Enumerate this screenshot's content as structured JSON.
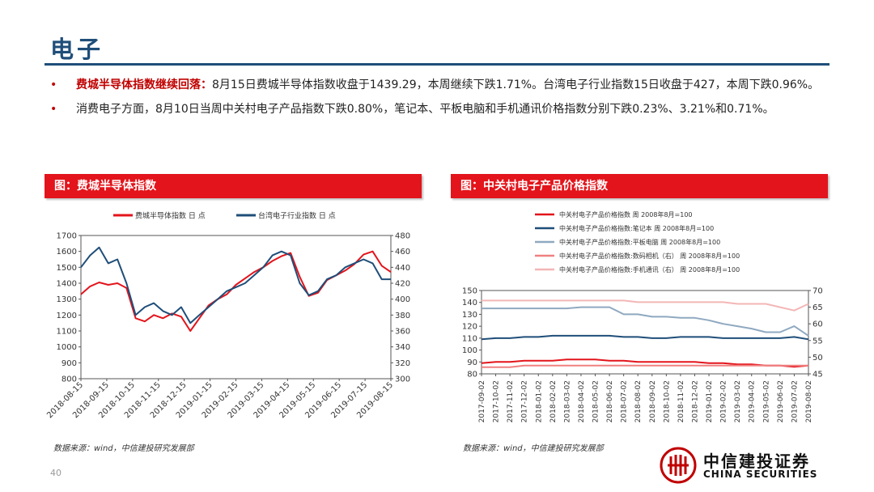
{
  "page": {
    "title": "电子",
    "page_number": "40",
    "bullets": [
      {
        "lead": "费城半导体指数继续回落：",
        "text": "8月15日费城半导体指数收盘于1439.29，本周继续下跌1.71%。台湾电子行业指数15日收盘于427，本周下跌0.96%。"
      },
      {
        "lead": "",
        "text": "消费电子方面，8月10日当周中关村电子产品指数下跌0.80%，笔记本、平板电脑和手机通讯价格指数分别下跌0.23%、3.21%和0.71%。"
      }
    ],
    "logo": {
      "cn": "中信建投证券",
      "en": "CHINA SECURITIES"
    },
    "colors": {
      "accent": "#e3141b",
      "brand": "#1f4e79"
    }
  },
  "chart_data": [
    {
      "type": "line",
      "panel_title": "图：费城半导体指数",
      "source": "数据来源：wind，中信建投研究发展部",
      "x_ticks": [
        "2018-08-15",
        "2018-09-15",
        "2018-10-15",
        "2018-11-15",
        "2018-12-15",
        "2019-01-15",
        "2019-02-15",
        "2019-03-15",
        "2019-04-15",
        "2019-05-15",
        "2019-06-15",
        "2019-07-15",
        "2019-08-15"
      ],
      "ylim": [
        800,
        1700
      ],
      "y_ticks": [
        800,
        900,
        1000,
        1100,
        1200,
        1300,
        1400,
        1500,
        1600,
        1700
      ],
      "y2lim": [
        300,
        480
      ],
      "y2_ticks": [
        300,
        320,
        340,
        360,
        380,
        400,
        420,
        440,
        460,
        480
      ],
      "legend_position": "top",
      "series": [
        {
          "name": "费城半导体指数 日 点",
          "axis": "left",
          "color": "#e3141b",
          "values": [
            1330,
            1380,
            1405,
            1390,
            1400,
            1370,
            1180,
            1160,
            1200,
            1180,
            1210,
            1190,
            1100,
            1180,
            1260,
            1300,
            1330,
            1390,
            1430,
            1470,
            1500,
            1540,
            1570,
            1590,
            1440,
            1320,
            1340,
            1420,
            1450,
            1480,
            1520,
            1580,
            1600,
            1510,
            1470
          ]
        },
        {
          "name": "台湾电子行业指数 日 点",
          "axis": "right",
          "color": "#1f4e79",
          "values": [
            440,
            455,
            465,
            445,
            450,
            420,
            380,
            390,
            395,
            385,
            380,
            390,
            370,
            380,
            390,
            400,
            410,
            415,
            420,
            430,
            440,
            455,
            460,
            455,
            420,
            405,
            410,
            425,
            430,
            440,
            445,
            450,
            445,
            425,
            425
          ]
        }
      ]
    },
    {
      "type": "line",
      "panel_title": "图：中关村电子产品价格指数",
      "source": "数据来源：wind，中信建投研究发展部",
      "x_ticks": [
        "2017-09-02",
        "2017-10-02",
        "2017-11-02",
        "2017-12-02",
        "2018-01-02",
        "2018-02-02",
        "2018-03-02",
        "2018-04-02",
        "2018-05-02",
        "2018-06-02",
        "2018-07-02",
        "2018-08-02",
        "2018-09-02",
        "2018-10-02",
        "2018-11-02",
        "2018-12-02",
        "2019-01-02",
        "2019-02-02",
        "2019-03-02",
        "2019-04-02",
        "2019-05-02",
        "2019-06-02",
        "2019-07-02",
        "2019-08-02"
      ],
      "ylim": [
        80,
        150
      ],
      "y_ticks": [
        80,
        90,
        100,
        110,
        120,
        130,
        140,
        150
      ],
      "y2lim": [
        45,
        70
      ],
      "y2_ticks": [
        45,
        50,
        55,
        60,
        65,
        70
      ],
      "legend_position": "top",
      "series": [
        {
          "name": "中关村电子产品价格指数 周 2008年8月=100",
          "axis": "left",
          "color": "#e3141b",
          "values": [
            89,
            90,
            90,
            91,
            91,
            91,
            92,
            92,
            92,
            91,
            91,
            90,
            90,
            90,
            90,
            90,
            89,
            89,
            88,
            88,
            87,
            87,
            86,
            87
          ]
        },
        {
          "name": "中关村电子产品价格指数:笔记本 周 2008年8月=100",
          "axis": "left",
          "color": "#1f4e79",
          "values": [
            109,
            110,
            110,
            111,
            111,
            112,
            112,
            112,
            112,
            112,
            111,
            111,
            110,
            110,
            111,
            111,
            111,
            110,
            110,
            110,
            110,
            110,
            111,
            109
          ]
        },
        {
          "name": "中关村电子产品价格指数:平板电脑 周 2008年8月=100",
          "axis": "left",
          "color": "#8fa9c0",
          "values": [
            135,
            135,
            135,
            135,
            135,
            135,
            135,
            136,
            136,
            136,
            130,
            130,
            128,
            128,
            127,
            127,
            125,
            122,
            120,
            118,
            115,
            115,
            120,
            112
          ]
        },
        {
          "name": "中关村电子产品价格指数:数码相机（右） 周 2008年8月=100",
          "axis": "right",
          "color": "#f08080",
          "values": [
            47,
            47,
            47,
            47.5,
            47.5,
            47.5,
            47.5,
            47.5,
            47.5,
            47.5,
            47.5,
            47.5,
            47.5,
            47.5,
            47.5,
            47.5,
            47.5,
            47.5,
            47.5,
            47.5,
            47.5,
            47.5,
            47.5,
            47.5
          ]
        },
        {
          "name": "中关村电子产品价格指数:手机通讯（右） 周 2008年8月=100",
          "axis": "right",
          "color": "#f4b6b6",
          "values": [
            67,
            67,
            67,
            67,
            67,
            67,
            67,
            67,
            67,
            67,
            67,
            66.5,
            66.5,
            66.5,
            66.5,
            66.5,
            66.5,
            66.5,
            66,
            66,
            66,
            65,
            64,
            66
          ]
        }
      ]
    }
  ]
}
